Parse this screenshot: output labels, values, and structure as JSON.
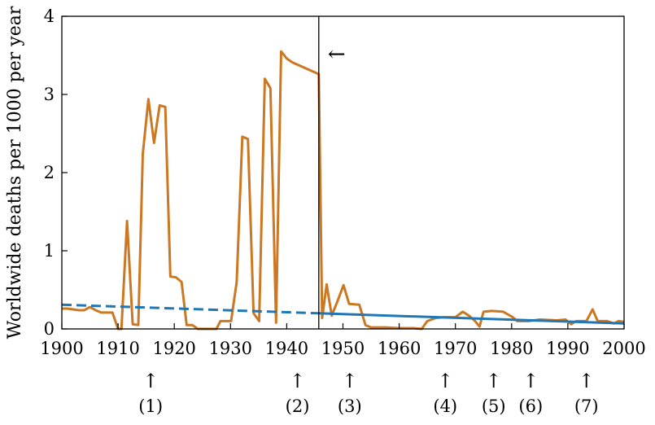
{
  "chart_data": {
    "type": "line",
    "title": "",
    "xlabel": "",
    "ylabel": "Worldwide deaths per 1000 per year",
    "xlim": [
      1900,
      2000
    ],
    "ylim": [
      0,
      4
    ],
    "x_ticks": [
      1900,
      1910,
      1920,
      1930,
      1940,
      1950,
      1960,
      1970,
      1980,
      1990,
      2000
    ],
    "y_ticks": [
      0,
      1,
      2,
      3,
      4
    ],
    "grid": false,
    "vertical_line_x": 1945.7,
    "arrow_annotation": {
      "text": "←",
      "x": 1947.3,
      "y": 3.5
    },
    "event_markers": [
      {
        "label": "(1)",
        "x": 1915.8
      },
      {
        "label": "(2)",
        "x": 1941.9
      },
      {
        "label": "(3)",
        "x": 1951.2
      },
      {
        "label": "(4)",
        "x": 1968.2
      },
      {
        "label": "(5)",
        "x": 1976.8
      },
      {
        "label": "(6)",
        "x": 1983.4
      },
      {
        "label": "(7)",
        "x": 1993.3
      }
    ],
    "series": [
      {
        "color": "#cc7722",
        "style": "solid",
        "points": [
          [
            1900,
            0.26
          ],
          [
            1901,
            0.26
          ],
          [
            1902,
            0.25
          ],
          [
            1903,
            0.24
          ],
          [
            1904,
            0.24
          ],
          [
            1905,
            0.28
          ],
          [
            1906,
            0.24
          ],
          [
            1907,
            0.21
          ],
          [
            1908,
            0.21
          ],
          [
            1909,
            0.21
          ],
          [
            1910,
            0.0
          ],
          [
            1910.6,
            0.0
          ],
          [
            1911.6,
            1.38
          ],
          [
            1912.6,
            0.06
          ],
          [
            1913.6,
            0.05
          ],
          [
            1914.4,
            2.24
          ],
          [
            1915.4,
            2.94
          ],
          [
            1916.4,
            2.38
          ],
          [
            1917.4,
            2.86
          ],
          [
            1918.4,
            2.84
          ],
          [
            1919.3,
            0.67
          ],
          [
            1920.3,
            0.66
          ],
          [
            1921.3,
            0.6
          ],
          [
            1922.2,
            0.05
          ],
          [
            1923.2,
            0.05
          ],
          [
            1924.2,
            0.0
          ],
          [
            1925.5,
            0.0
          ],
          [
            1927.5,
            0.0
          ],
          [
            1928.2,
            0.1
          ],
          [
            1929.3,
            0.1
          ],
          [
            1930.1,
            0.1
          ],
          [
            1931.1,
            0.6
          ],
          [
            1932.1,
            2.46
          ],
          [
            1933.1,
            2.43
          ],
          [
            1934.1,
            0.2
          ],
          [
            1935.1,
            0.1
          ],
          [
            1936.1,
            3.2
          ],
          [
            1937.1,
            3.08
          ],
          [
            1938.1,
            0.08
          ],
          [
            1939.0,
            3.55
          ],
          [
            1940.0,
            3.46
          ],
          [
            1941.0,
            3.41
          ],
          [
            1945.7,
            3.26
          ],
          [
            1946.3,
            0.14
          ],
          [
            1947.1,
            0.57
          ],
          [
            1948.0,
            0.17
          ],
          [
            1949.0,
            0.35
          ],
          [
            1950.1,
            0.56
          ],
          [
            1951.1,
            0.32
          ],
          [
            1952.9,
            0.31
          ],
          [
            1954.0,
            0.05
          ],
          [
            1955.0,
            0.02
          ],
          [
            1957.5,
            0.02
          ],
          [
            1960.0,
            0.01
          ],
          [
            1962.5,
            0.01
          ],
          [
            1964.0,
            0.0
          ],
          [
            1965.0,
            0.1
          ],
          [
            1966.5,
            0.14
          ],
          [
            1968.0,
            0.15
          ],
          [
            1970.0,
            0.15
          ],
          [
            1971.3,
            0.22
          ],
          [
            1972.4,
            0.17
          ],
          [
            1973.5,
            0.1
          ],
          [
            1974.3,
            0.03
          ],
          [
            1975.0,
            0.22
          ],
          [
            1976.5,
            0.23
          ],
          [
            1978.5,
            0.22
          ],
          [
            1980.2,
            0.15
          ],
          [
            1981.0,
            0.1
          ],
          [
            1983.0,
            0.1
          ],
          [
            1985.0,
            0.12
          ],
          [
            1988.0,
            0.11
          ],
          [
            1989.6,
            0.12
          ],
          [
            1990.6,
            0.06
          ],
          [
            1991.5,
            0.1
          ],
          [
            1993.3,
            0.1
          ],
          [
            1994.4,
            0.25
          ],
          [
            1995.3,
            0.1
          ],
          [
            1997.0,
            0.1
          ],
          [
            1998.2,
            0.07
          ],
          [
            1999.0,
            0.1
          ],
          [
            2000.0,
            0.09
          ]
        ]
      },
      {
        "color": "#1f77b4",
        "style": "dashed",
        "points": [
          [
            1900,
            0.31
          ],
          [
            1945.7,
            0.2
          ]
        ]
      },
      {
        "color": "#1f77b4",
        "style": "solid",
        "points": [
          [
            1945.7,
            0.2
          ],
          [
            2000,
            0.07
          ]
        ]
      }
    ]
  }
}
